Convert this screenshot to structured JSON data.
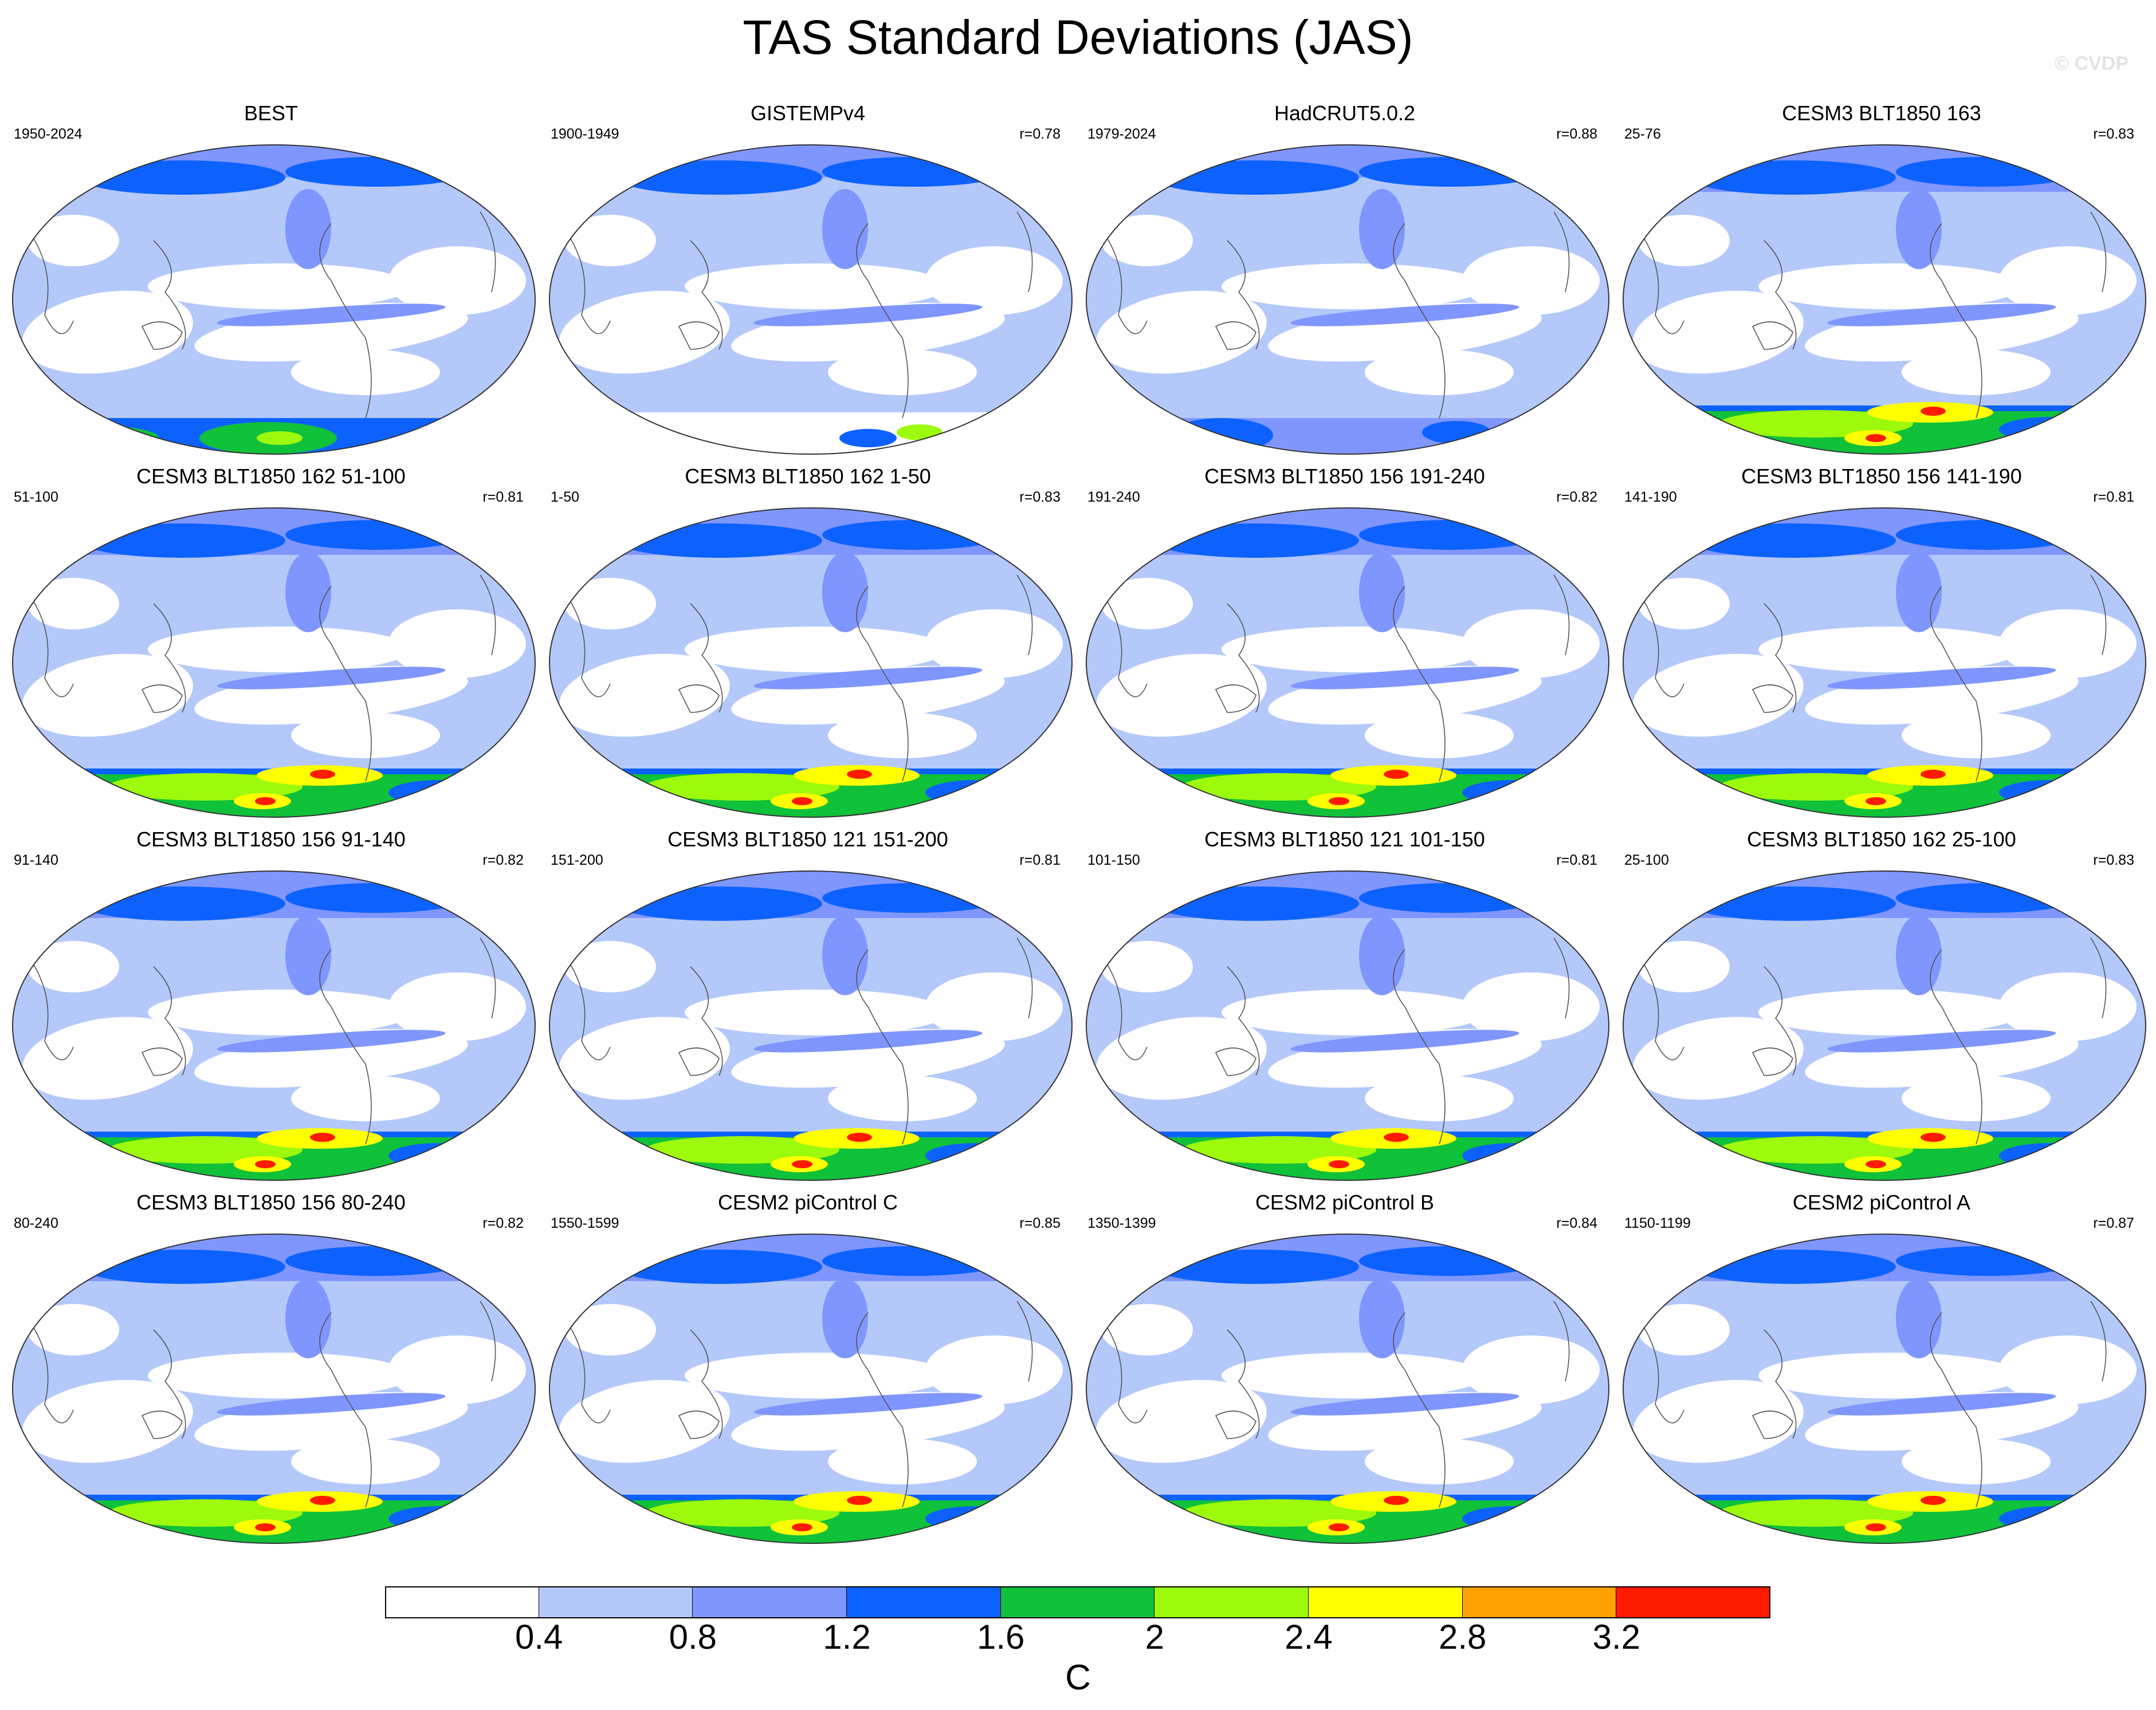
{
  "title": "TAS Standard Deviations (JAS)",
  "watermark": "© CVDP",
  "colorbar": {
    "units": "C",
    "colors": [
      "#ffffff",
      "#b4c8fa",
      "#7f96ff",
      "#0d62ff",
      "#10c13a",
      "#9dfa0c",
      "#ffff00",
      "#ffa100",
      "#ff1b00"
    ],
    "labels": [
      "0.4",
      "0.8",
      "1.2",
      "1.6",
      "2",
      "2.4",
      "2.8",
      "3.2"
    ]
  },
  "panels": [
    {
      "title": "BEST",
      "period": "1950-2024",
      "corr": ""
    },
    {
      "title": "GISTEMPv4",
      "period": "1900-1949",
      "corr": "r=0.78"
    },
    {
      "title": "HadCRUT5.0.2",
      "period": "1979-2024",
      "corr": "r=0.88"
    },
    {
      "title": "CESM3 BLT1850 163",
      "period": "25-76",
      "corr": "r=0.83"
    },
    {
      "title": "CESM3 BLT1850 162 51-100",
      "period": "51-100",
      "corr": "r=0.81"
    },
    {
      "title": "CESM3 BLT1850 162 1-50",
      "period": "1-50",
      "corr": "r=0.83"
    },
    {
      "title": "CESM3 BLT1850 156 191-240",
      "period": "191-240",
      "corr": "r=0.82"
    },
    {
      "title": "CESM3 BLT1850 156 141-190",
      "period": "141-190",
      "corr": "r=0.81"
    },
    {
      "title": "CESM3 BLT1850 156 91-140",
      "period": "91-140",
      "corr": "r=0.82"
    },
    {
      "title": "CESM3 BLT1850 121 151-200",
      "period": "151-200",
      "corr": "r=0.81"
    },
    {
      "title": "CESM3 BLT1850 121 101-150",
      "period": "101-150",
      "corr": "r=0.81"
    },
    {
      "title": "CESM3 BLT1850 162 25-100",
      "period": "25-100",
      "corr": "r=0.83"
    },
    {
      "title": "CESM3 BLT1850 156 80-240",
      "period": "80-240",
      "corr": "r=0.82"
    },
    {
      "title": "CESM2 piControl C",
      "period": "1550-1599",
      "corr": "r=0.85"
    },
    {
      "title": "CESM2 piControl B",
      "period": "1350-1399",
      "corr": "r=0.84"
    },
    {
      "title": "CESM2 piControl A",
      "period": "1150-1199",
      "corr": "r=0.87"
    }
  ]
}
